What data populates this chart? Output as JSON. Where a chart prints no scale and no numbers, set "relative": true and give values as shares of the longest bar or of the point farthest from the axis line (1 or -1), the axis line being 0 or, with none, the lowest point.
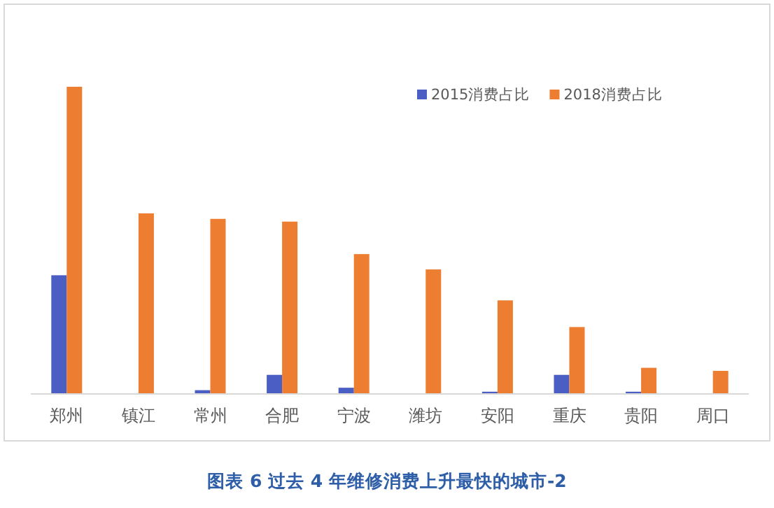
{
  "chart_data": {
    "type": "bar",
    "relative": true,
    "legend": "top right",
    "categories": [
      "郑州",
      "镇江",
      "常州",
      "合肥",
      "宁波",
      "潍坊",
      "安阳",
      "重庆",
      "贵阳",
      "周口"
    ],
    "series": [
      {
        "name": "2015消费占比",
        "color": "#4a5ec4",
        "values": [
          0.385,
          0,
          0.01,
          0.06,
          0.018,
          0,
          0.005,
          0.06,
          0.005,
          0
        ]
      },
      {
        "name": "2018消费占比",
        "color": "#ed7d31",
        "values": [
          1,
          0.587,
          0.569,
          0.56,
          0.454,
          0.404,
          0.303,
          0.216,
          0.083,
          0.073
        ]
      }
    ],
    "annotations": [
      "图表 6 过去 4 年维修消费上升最快的城市-2"
    ]
  }
}
